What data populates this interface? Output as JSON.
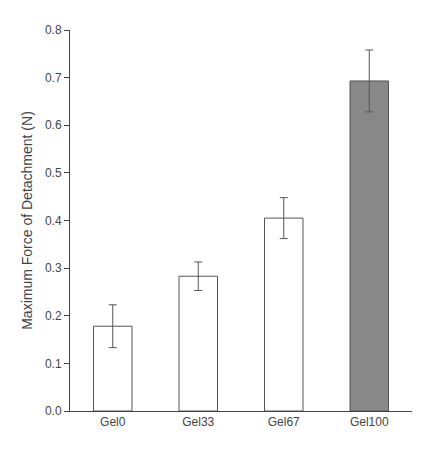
{
  "chart_data": {
    "type": "bar",
    "categories": [
      "Gel0",
      "Gel33",
      "Gel67",
      "Gel100"
    ],
    "values": [
      0.178,
      0.283,
      0.405,
      0.693
    ],
    "errors": [
      0.045,
      0.03,
      0.043,
      0.065
    ],
    "ylabel": "Maximum Force of Detachment (N)",
    "ylim": [
      0.0,
      0.8
    ],
    "yticks": [
      {
        "value": 0.0,
        "label": "0.0"
      },
      0.1,
      0.2,
      0.3,
      0.4,
      0.5,
      0.6,
      0.7,
      0.8
    ],
    "colors": [
      "#ffffff",
      "#ffffff",
      "#ffffff",
      "#888888"
    ],
    "grid": false
  }
}
